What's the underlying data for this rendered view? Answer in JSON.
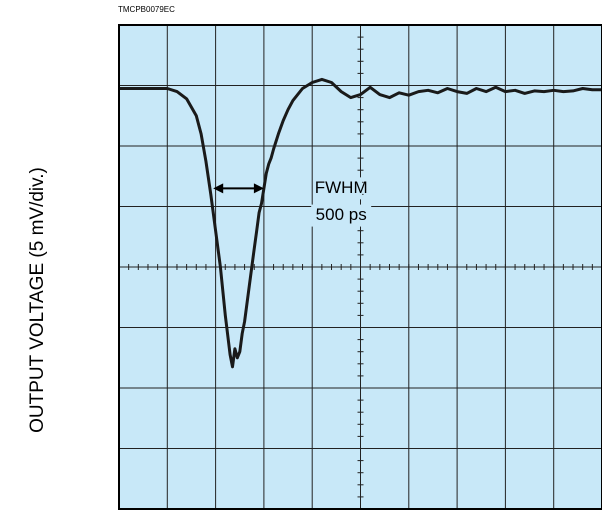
{
  "figure_id": "TMCPB0079EC",
  "chart_data": {
    "type": "line",
    "title": "",
    "xlabel": "",
    "ylabel": "OUTPUT VOLTAGE (5 mV/div.)",
    "x_divisions": 10,
    "y_divisions": 8,
    "xlim": [
      0,
      10
    ],
    "ylim": [
      -4,
      4
    ],
    "grid": true,
    "background_color": "#c8e8f8",
    "line_color": "#1a1a1a",
    "series": [
      {
        "x": [
          0,
          0.5,
          1.0,
          1.2,
          1.4,
          1.6,
          1.7,
          1.8,
          1.9,
          2.0,
          2.1,
          2.2,
          2.3,
          2.35,
          2.4,
          2.45,
          2.5,
          2.55,
          2.6,
          2.7,
          2.75,
          2.8,
          2.85,
          2.9,
          2.95,
          3.0,
          3.05,
          3.1,
          3.15,
          3.2,
          3.3,
          3.4,
          3.5,
          3.6,
          3.8,
          4.0,
          4.2,
          4.4,
          4.6,
          4.8,
          5.0,
          5.2,
          5.4,
          5.6,
          5.8,
          6.0,
          6.2,
          6.4,
          6.6,
          6.8,
          7.0,
          7.2,
          7.4,
          7.6,
          7.8,
          8.0,
          8.2,
          8.4,
          8.6,
          8.8,
          9.0,
          9.2,
          9.4,
          9.6,
          9.8,
          10.0
        ],
        "y": [
          2.95,
          2.95,
          2.95,
          2.9,
          2.78,
          2.5,
          2.2,
          1.75,
          1.2,
          0.6,
          0.0,
          -0.8,
          -1.45,
          -1.65,
          -1.35,
          -1.5,
          -1.4,
          -1.1,
          -0.9,
          -0.3,
          0.0,
          0.3,
          0.6,
          0.9,
          1.05,
          1.3,
          1.55,
          1.7,
          1.8,
          1.95,
          2.2,
          2.42,
          2.6,
          2.75,
          2.95,
          3.05,
          3.1,
          3.05,
          2.9,
          2.8,
          2.85,
          2.97,
          2.85,
          2.8,
          2.88,
          2.84,
          2.9,
          2.92,
          2.88,
          2.95,
          2.9,
          2.87,
          2.95,
          2.9,
          2.97,
          2.9,
          2.92,
          2.87,
          2.91,
          2.9,
          2.92,
          2.9,
          2.91,
          2.95,
          2.93,
          2.93
        ]
      }
    ],
    "annotations": [
      {
        "text": "FWHM",
        "x": 4.6,
        "y": 1.3
      },
      {
        "text": "500 ps",
        "x": 4.6,
        "y": 0.85
      }
    ],
    "fwhm_marker": {
      "x_start": 1.95,
      "x_end": 3.0,
      "y": 1.3
    }
  }
}
